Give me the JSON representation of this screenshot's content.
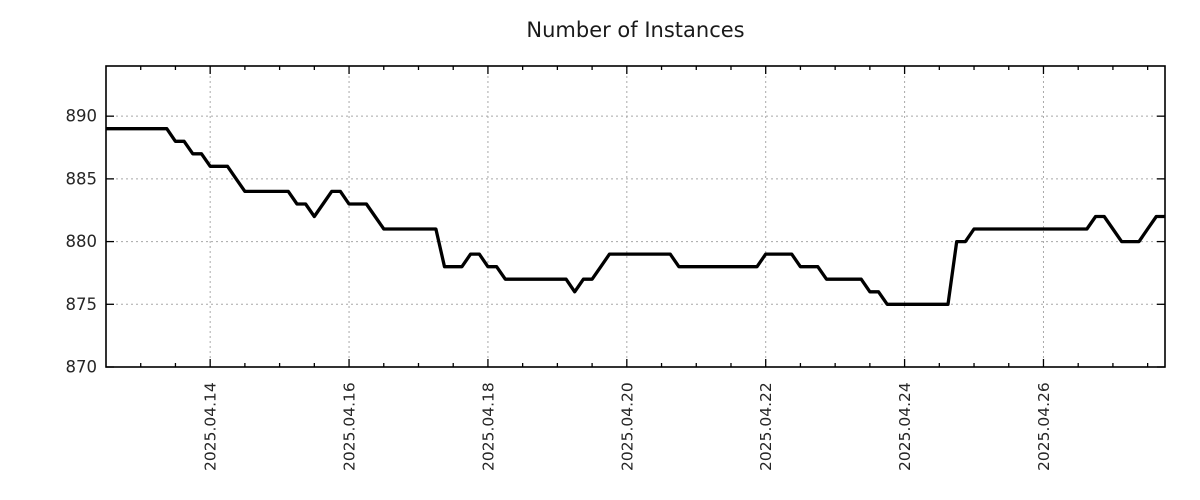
{
  "chart_data": {
    "type": "line",
    "title": "Number of Instances",
    "xlabel": "",
    "ylabel": "",
    "legend": false,
    "grid": true,
    "x_axis": {
      "range": [
        "2025.04.12 12:00",
        "2025.04.27 18:00"
      ],
      "tick_labels": [
        "2025.04.14",
        "2025.04.16",
        "2025.04.18",
        "2025.04.20",
        "2025.04.22",
        "2025.04.24",
        "2025.04.26"
      ],
      "minor_tick_hours": 12
    },
    "y_axis": {
      "range": [
        870,
        894
      ],
      "ticks": [
        870,
        875,
        880,
        885,
        890
      ]
    },
    "series": [
      {
        "name": "instances",
        "color": "#000000",
        "interval_hours": 3,
        "points": [
          [
            "2025.04.12 12:00",
            889
          ],
          [
            "2025.04.12 15:00",
            889
          ],
          [
            "2025.04.12 18:00",
            889
          ],
          [
            "2025.04.12 21:00",
            889
          ],
          [
            "2025.04.13 00:00",
            889
          ],
          [
            "2025.04.13 03:00",
            889
          ],
          [
            "2025.04.13 06:00",
            889
          ],
          [
            "2025.04.13 09:00",
            889
          ],
          [
            "2025.04.13 12:00",
            888
          ],
          [
            "2025.04.13 15:00",
            888
          ],
          [
            "2025.04.13 18:00",
            887
          ],
          [
            "2025.04.13 21:00",
            887
          ],
          [
            "2025.04.14 00:00",
            886
          ],
          [
            "2025.04.14 03:00",
            886
          ],
          [
            "2025.04.14 06:00",
            886
          ],
          [
            "2025.04.14 09:00",
            885
          ],
          [
            "2025.04.14 12:00",
            884
          ],
          [
            "2025.04.14 15:00",
            884
          ],
          [
            "2025.04.14 18:00",
            884
          ],
          [
            "2025.04.14 21:00",
            884
          ],
          [
            "2025.04.15 00:00",
            884
          ],
          [
            "2025.04.15 03:00",
            884
          ],
          [
            "2025.04.15 06:00",
            883
          ],
          [
            "2025.04.15 09:00",
            883
          ],
          [
            "2025.04.15 12:00",
            882
          ],
          [
            "2025.04.15 15:00",
            883
          ],
          [
            "2025.04.15 18:00",
            884
          ],
          [
            "2025.04.15 21:00",
            884
          ],
          [
            "2025.04.16 00:00",
            883
          ],
          [
            "2025.04.16 03:00",
            883
          ],
          [
            "2025.04.16 06:00",
            883
          ],
          [
            "2025.04.16 09:00",
            882
          ],
          [
            "2025.04.16 12:00",
            881
          ],
          [
            "2025.04.16 15:00",
            881
          ],
          [
            "2025.04.16 18:00",
            881
          ],
          [
            "2025.04.16 21:00",
            881
          ],
          [
            "2025.04.17 00:00",
            881
          ],
          [
            "2025.04.17 03:00",
            881
          ],
          [
            "2025.04.17 06:00",
            881
          ],
          [
            "2025.04.17 09:00",
            878
          ],
          [
            "2025.04.17 12:00",
            878
          ],
          [
            "2025.04.17 15:00",
            878
          ],
          [
            "2025.04.17 18:00",
            879
          ],
          [
            "2025.04.17 21:00",
            879
          ],
          [
            "2025.04.18 00:00",
            878
          ],
          [
            "2025.04.18 03:00",
            878
          ],
          [
            "2025.04.18 06:00",
            877
          ],
          [
            "2025.04.18 09:00",
            877
          ],
          [
            "2025.04.18 12:00",
            877
          ],
          [
            "2025.04.18 15:00",
            877
          ],
          [
            "2025.04.18 18:00",
            877
          ],
          [
            "2025.04.18 21:00",
            877
          ],
          [
            "2025.04.19 00:00",
            877
          ],
          [
            "2025.04.19 03:00",
            877
          ],
          [
            "2025.04.19 06:00",
            876
          ],
          [
            "2025.04.19 09:00",
            877
          ],
          [
            "2025.04.19 12:00",
            877
          ],
          [
            "2025.04.19 15:00",
            878
          ],
          [
            "2025.04.19 18:00",
            879
          ],
          [
            "2025.04.19 21:00",
            879
          ],
          [
            "2025.04.20 00:00",
            879
          ],
          [
            "2025.04.20 03:00",
            879
          ],
          [
            "2025.04.20 06:00",
            879
          ],
          [
            "2025.04.20 09:00",
            879
          ],
          [
            "2025.04.20 12:00",
            879
          ],
          [
            "2025.04.20 15:00",
            879
          ],
          [
            "2025.04.20 18:00",
            878
          ],
          [
            "2025.04.20 21:00",
            878
          ],
          [
            "2025.04.21 00:00",
            878
          ],
          [
            "2025.04.21 03:00",
            878
          ],
          [
            "2025.04.21 06:00",
            878
          ],
          [
            "2025.04.21 09:00",
            878
          ],
          [
            "2025.04.21 12:00",
            878
          ],
          [
            "2025.04.21 15:00",
            878
          ],
          [
            "2025.04.21 18:00",
            878
          ],
          [
            "2025.04.21 21:00",
            878
          ],
          [
            "2025.04.22 00:00",
            879
          ],
          [
            "2025.04.22 03:00",
            879
          ],
          [
            "2025.04.22 06:00",
            879
          ],
          [
            "2025.04.22 09:00",
            879
          ],
          [
            "2025.04.22 12:00",
            878
          ],
          [
            "2025.04.22 15:00",
            878
          ],
          [
            "2025.04.22 18:00",
            878
          ],
          [
            "2025.04.22 21:00",
            877
          ],
          [
            "2025.04.23 00:00",
            877
          ],
          [
            "2025.04.23 03:00",
            877
          ],
          [
            "2025.04.23 06:00",
            877
          ],
          [
            "2025.04.23 09:00",
            877
          ],
          [
            "2025.04.23 12:00",
            876
          ],
          [
            "2025.04.23 15:00",
            876
          ],
          [
            "2025.04.23 18:00",
            875
          ],
          [
            "2025.04.23 21:00",
            875
          ],
          [
            "2025.04.24 00:00",
            875
          ],
          [
            "2025.04.24 03:00",
            875
          ],
          [
            "2025.04.24 06:00",
            875
          ],
          [
            "2025.04.24 09:00",
            875
          ],
          [
            "2025.04.24 12:00",
            875
          ],
          [
            "2025.04.24 15:00",
            875
          ],
          [
            "2025.04.24 18:00",
            880
          ],
          [
            "2025.04.24 21:00",
            880
          ],
          [
            "2025.04.25 00:00",
            881
          ],
          [
            "2025.04.25 03:00",
            881
          ],
          [
            "2025.04.25 06:00",
            881
          ],
          [
            "2025.04.25 09:00",
            881
          ],
          [
            "2025.04.25 12:00",
            881
          ],
          [
            "2025.04.25 15:00",
            881
          ],
          [
            "2025.04.25 18:00",
            881
          ],
          [
            "2025.04.25 21:00",
            881
          ],
          [
            "2025.04.26 00:00",
            881
          ],
          [
            "2025.04.26 03:00",
            881
          ],
          [
            "2025.04.26 06:00",
            881
          ],
          [
            "2025.04.26 09:00",
            881
          ],
          [
            "2025.04.26 12:00",
            881
          ],
          [
            "2025.04.26 15:00",
            881
          ],
          [
            "2025.04.26 18:00",
            882
          ],
          [
            "2025.04.26 21:00",
            882
          ],
          [
            "2025.04.27 00:00",
            881
          ],
          [
            "2025.04.27 03:00",
            880
          ],
          [
            "2025.04.27 06:00",
            880
          ],
          [
            "2025.04.27 09:00",
            880
          ],
          [
            "2025.04.27 12:00",
            881
          ],
          [
            "2025.04.27 15:00",
            882
          ],
          [
            "2025.04.27 18:00",
            882
          ]
        ]
      }
    ]
  },
  "style": {
    "line_color": "#000000",
    "grid_color": "#a8a8a8",
    "text_color": "#262626",
    "background": "#ffffff"
  }
}
